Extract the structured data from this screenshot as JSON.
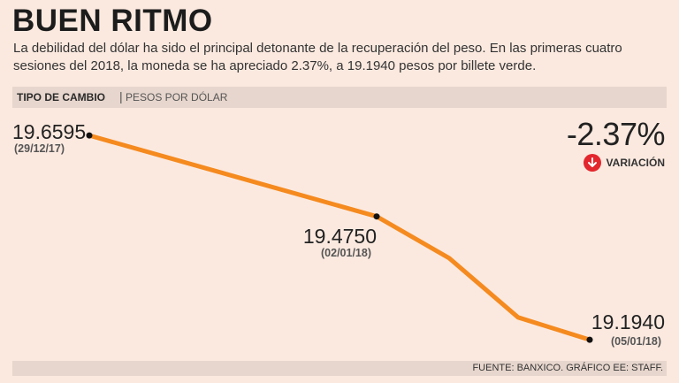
{
  "title": "BUEN RITMO",
  "subtitle": "La debilidad del dólar ha sido el principal detonante de la recuperación del peso. En las primeras cuatro sesiones del 2018, la moneda se ha apreciado 2.37%, a 19.1940 pesos por billete verde.",
  "header": {
    "label_bold": "TIPO DE CAMBIO",
    "separator": "|",
    "label_light": "PESOS POR DÓLAR"
  },
  "variation": {
    "value": "-2.37%",
    "label": "VARIACIÓN",
    "icon": "arrow-down-circle-icon",
    "icon_color": "#e3262d"
  },
  "footer": {
    "source": "FUENTE: BANXICO. GRÁFICO EE: STAFF."
  },
  "colors": {
    "line": "#f58a1f",
    "background": "#fbe9df",
    "bar": "#e7d6cd"
  },
  "chart_data": {
    "type": "line",
    "ylabel": "PESOS POR DÓLAR",
    "ylim": [
      19.16,
      19.69
    ],
    "x": [
      0,
      1,
      2,
      3,
      4
    ],
    "values": [
      19.6595,
      19.475,
      19.38,
      19.245,
      19.194
    ],
    "labeled_points": [
      {
        "index": 0,
        "value": "19.6595",
        "date": "(29/12/17)"
      },
      {
        "index": 1,
        "value": "19.4750",
        "date": "(02/01/18)"
      },
      {
        "index": 4,
        "value": "19.1940",
        "date": "(05/01/18)"
      }
    ]
  }
}
